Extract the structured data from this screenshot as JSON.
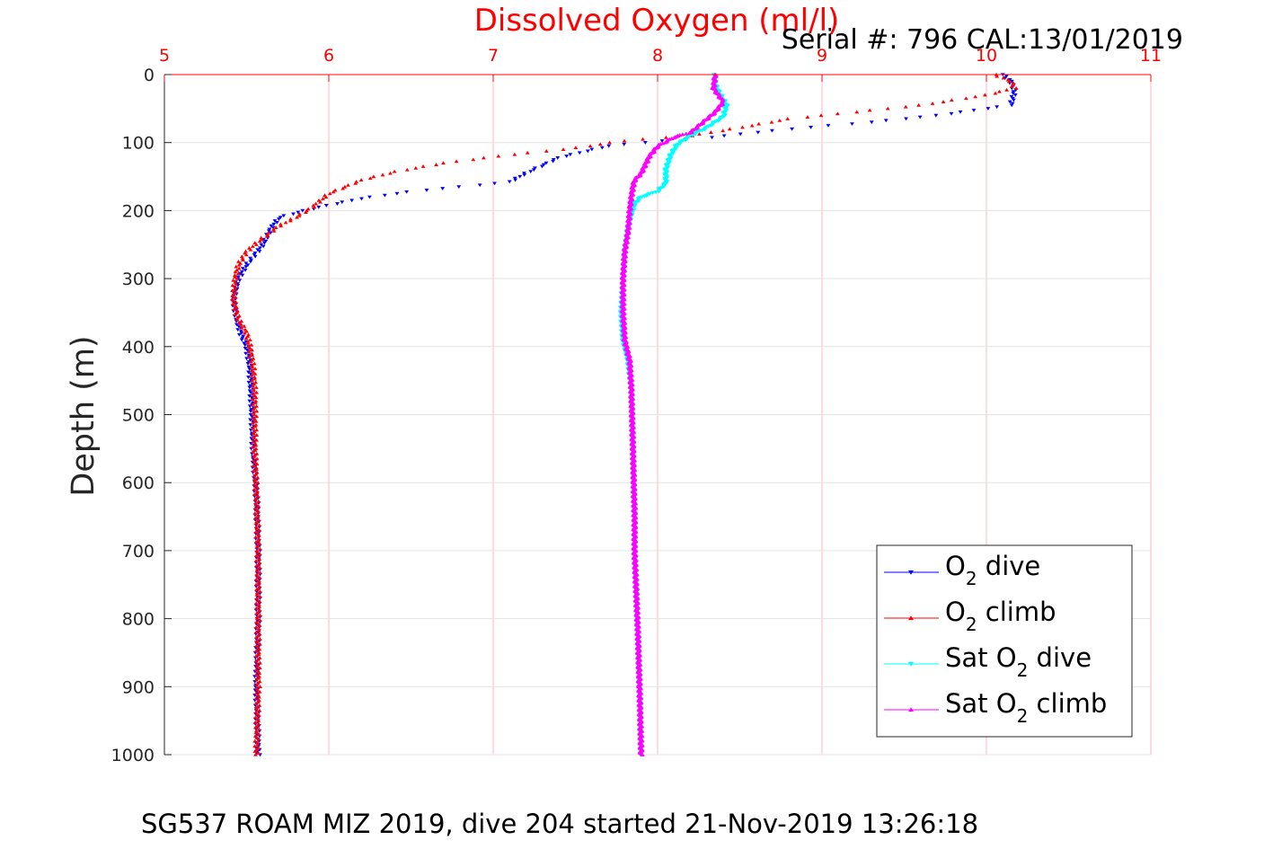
{
  "serial_text": "Serial #: 796  CAL:13/01/2019",
  "footer_text": "SG537 ROAM MIZ 2019, dive 204 started 21-Nov-2019 13:26:18",
  "chart_data": {
    "type": "scatter",
    "title": "Dissolved Oxygen (ml/l)",
    "xlabel": "",
    "ylabel": "Depth (m)",
    "xlim": [
      5,
      11
    ],
    "ylim": [
      0,
      1000
    ],
    "y_reversed": true,
    "x_axis_position": "top",
    "x_ticks": [
      5,
      6,
      7,
      8,
      9,
      10,
      11
    ],
    "y_ticks": [
      0,
      100,
      200,
      300,
      400,
      500,
      600,
      700,
      800,
      900,
      1000
    ],
    "x_tick_color": "#ff0000",
    "x_grid_color": "#ffb6c1",
    "grid": true,
    "legend": {
      "position": "bottom-right"
    },
    "series": [
      {
        "name": "O2 dive",
        "label": [
          "O",
          "2",
          " dive"
        ],
        "color": "#0000ff",
        "marker": "triangle-down",
        "points": [
          [
            10.1,
            0
          ],
          [
            10.15,
            10
          ],
          [
            10.17,
            25
          ],
          [
            10.15,
            45
          ],
          [
            10.0,
            50
          ],
          [
            9.7,
            60
          ],
          [
            9.3,
            70
          ],
          [
            8.9,
            78
          ],
          [
            8.6,
            85
          ],
          [
            8.3,
            93
          ],
          [
            8.0,
            98
          ],
          [
            7.7,
            105
          ],
          [
            7.4,
            122
          ],
          [
            7.2,
            145
          ],
          [
            7.1,
            158
          ],
          [
            6.8,
            165
          ],
          [
            6.5,
            172
          ],
          [
            6.2,
            182
          ],
          [
            6.0,
            192
          ],
          [
            5.85,
            200
          ],
          [
            5.7,
            210
          ],
          [
            5.65,
            225
          ],
          [
            5.6,
            250
          ],
          [
            5.5,
            280
          ],
          [
            5.45,
            300
          ],
          [
            5.42,
            330
          ],
          [
            5.44,
            360
          ],
          [
            5.47,
            385
          ],
          [
            5.5,
            400
          ],
          [
            5.52,
            430
          ],
          [
            5.53,
            480
          ],
          [
            5.54,
            550
          ],
          [
            5.56,
            620
          ],
          [
            5.57,
            700
          ],
          [
            5.57,
            800
          ],
          [
            5.56,
            900
          ],
          [
            5.57,
            1000
          ]
        ]
      },
      {
        "name": "O2 climb",
        "label": [
          "O",
          "2",
          " climb"
        ],
        "color": "#ff0000",
        "marker": "triangle-up",
        "points": [
          [
            10.05,
            0
          ],
          [
            10.15,
            10
          ],
          [
            10.17,
            20
          ],
          [
            10.0,
            30
          ],
          [
            9.6,
            45
          ],
          [
            9.2,
            55
          ],
          [
            8.8,
            65
          ],
          [
            8.5,
            78
          ],
          [
            8.2,
            90
          ],
          [
            7.8,
            97
          ],
          [
            7.5,
            108
          ],
          [
            7.1,
            118
          ],
          [
            6.7,
            130
          ],
          [
            6.4,
            143
          ],
          [
            6.2,
            155
          ],
          [
            6.0,
            175
          ],
          [
            5.9,
            195
          ],
          [
            5.8,
            210
          ],
          [
            5.7,
            222
          ],
          [
            5.6,
            240
          ],
          [
            5.5,
            260
          ],
          [
            5.45,
            280
          ],
          [
            5.43,
            300
          ],
          [
            5.42,
            330
          ],
          [
            5.45,
            360
          ],
          [
            5.5,
            380
          ],
          [
            5.52,
            400
          ],
          [
            5.54,
            430
          ],
          [
            5.55,
            470
          ],
          [
            5.55,
            550
          ],
          [
            5.56,
            620
          ],
          [
            5.57,
            700
          ],
          [
            5.57,
            800
          ],
          [
            5.57,
            900
          ],
          [
            5.56,
            1000
          ]
        ]
      },
      {
        "name": "Sat O2 dive",
        "label": [
          "Sat O",
          "2",
          " dive"
        ],
        "color": "#00ffff",
        "marker": "triangle-down",
        "points": [
          [
            8.35,
            0
          ],
          [
            8.35,
            15
          ],
          [
            8.38,
            30
          ],
          [
            8.42,
            45
          ],
          [
            8.4,
            62
          ],
          [
            8.3,
            78
          ],
          [
            8.2,
            90
          ],
          [
            8.12,
            103
          ],
          [
            8.08,
            118
          ],
          [
            8.05,
            140
          ],
          [
            8.05,
            160
          ],
          [
            8.0,
            172
          ],
          [
            7.9,
            180
          ],
          [
            7.86,
            190
          ],
          [
            7.84,
            205
          ],
          [
            7.82,
            225
          ],
          [
            7.8,
            260
          ],
          [
            7.79,
            300
          ],
          [
            7.78,
            350
          ],
          [
            7.79,
            390
          ],
          [
            7.82,
            420
          ],
          [
            7.84,
            460
          ],
          [
            7.85,
            550
          ],
          [
            7.86,
            650
          ],
          [
            7.86,
            700
          ],
          [
            7.87,
            760
          ],
          [
            7.88,
            820
          ],
          [
            7.89,
            900
          ],
          [
            7.9,
            1000
          ]
        ]
      },
      {
        "name": "Sat O2 climb",
        "label": [
          "Sat O",
          "2",
          " climb"
        ],
        "color": "#ff00ff",
        "marker": "triangle-up",
        "points": [
          [
            8.35,
            0
          ],
          [
            8.34,
            20
          ],
          [
            8.4,
            40
          ],
          [
            8.35,
            55
          ],
          [
            8.3,
            65
          ],
          [
            8.25,
            75
          ],
          [
            8.2,
            85
          ],
          [
            8.1,
            92
          ],
          [
            8.0,
            105
          ],
          [
            7.95,
            120
          ],
          [
            7.9,
            145
          ],
          [
            7.86,
            155
          ],
          [
            7.85,
            165
          ],
          [
            7.84,
            180
          ],
          [
            7.83,
            200
          ],
          [
            7.82,
            230
          ],
          [
            7.8,
            260
          ],
          [
            7.79,
            300
          ],
          [
            7.79,
            350
          ],
          [
            7.8,
            390
          ],
          [
            7.83,
            420
          ],
          [
            7.84,
            460
          ],
          [
            7.85,
            550
          ],
          [
            7.86,
            650
          ],
          [
            7.86,
            700
          ],
          [
            7.87,
            760
          ],
          [
            7.88,
            820
          ],
          [
            7.89,
            900
          ],
          [
            7.9,
            1000
          ]
        ]
      }
    ]
  }
}
